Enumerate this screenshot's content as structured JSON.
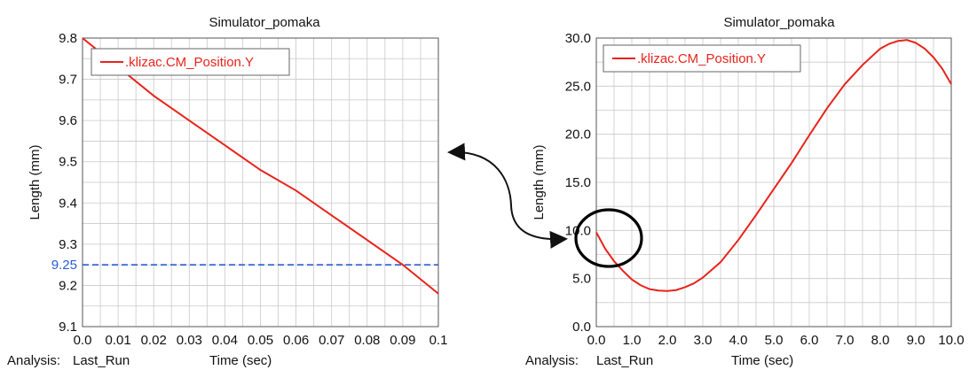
{
  "chart_data": [
    {
      "type": "line",
      "title": "Simulator_pomaka",
      "xlabel": "Time (sec)",
      "ylabel": "Length (mm)",
      "xlim": [
        0.0,
        0.1
      ],
      "ylim": [
        9.1,
        9.8
      ],
      "grid": true,
      "legend_placement": "top-left",
      "x_ticks": [
        "0.0",
        "0.01",
        "0.02",
        "0.03",
        "0.04",
        "0.05",
        "0.06",
        "0.07",
        "0.08",
        "0.09",
        "0.1"
      ],
      "y_ticks": [
        "9.1",
        "9.2",
        "9.3",
        "9.4",
        "9.5",
        "9.6",
        "9.7",
        "9.8"
      ],
      "series": [
        {
          "name": ".klizac.CM_Position.Y",
          "color": "#e8231b",
          "x": [
            0.0,
            0.01,
            0.02,
            0.03,
            0.04,
            0.05,
            0.06,
            0.07,
            0.08,
            0.09,
            0.1
          ],
          "y": [
            9.8,
            9.73,
            9.66,
            9.6,
            9.54,
            9.48,
            9.43,
            9.37,
            9.31,
            9.25,
            9.18
          ]
        }
      ],
      "reference_line": {
        "y": 9.25,
        "label": "9.25",
        "color": "#2a5bd7",
        "style": "dashed"
      },
      "footer": {
        "analysis_label": "Analysis:",
        "analysis_value": "Last_Run"
      }
    },
    {
      "type": "line",
      "title": "Simulator_pomaka",
      "xlabel": "Time (sec)",
      "ylabel": "Length (mm)",
      "xlim": [
        0.0,
        10.0
      ],
      "ylim": [
        0.0,
        30.0
      ],
      "grid": true,
      "legend_placement": "top-left",
      "x_ticks": [
        "0.0",
        "1.0",
        "2.0",
        "3.0",
        "4.0",
        "5.0",
        "6.0",
        "7.0",
        "8.0",
        "9.0",
        "10.0"
      ],
      "y_ticks": [
        "0.0",
        "5.0",
        "10.0",
        "15.0",
        "20.0",
        "25.0",
        "30.0"
      ],
      "series": [
        {
          "name": ".klizac.CM_Position.Y",
          "color": "#e8231b",
          "x": [
            0.0,
            0.25,
            0.5,
            0.75,
            1.0,
            1.25,
            1.5,
            1.75,
            2.0,
            2.25,
            2.5,
            2.75,
            3.0,
            3.5,
            4.0,
            4.5,
            5.0,
            5.5,
            6.0,
            6.5,
            7.0,
            7.5,
            8.0,
            8.25,
            8.5,
            8.75,
            9.0,
            9.25,
            9.5,
            9.75,
            10.0
          ],
          "y": [
            9.8,
            8.1,
            6.8,
            5.8,
            4.9,
            4.3,
            3.9,
            3.75,
            3.7,
            3.8,
            4.1,
            4.5,
            5.1,
            6.7,
            9.0,
            11.6,
            14.3,
            17.0,
            19.9,
            22.7,
            25.2,
            27.2,
            28.9,
            29.4,
            29.7,
            29.8,
            29.5,
            28.9,
            28.0,
            26.8,
            25.2
          ]
        }
      ],
      "annotations": {
        "highlight": "circle around initial segment",
        "connector": "double-headed curved arrow to left chart"
      },
      "footer": {
        "analysis_label": "Analysis:",
        "analysis_value": "Last_Run"
      }
    }
  ]
}
